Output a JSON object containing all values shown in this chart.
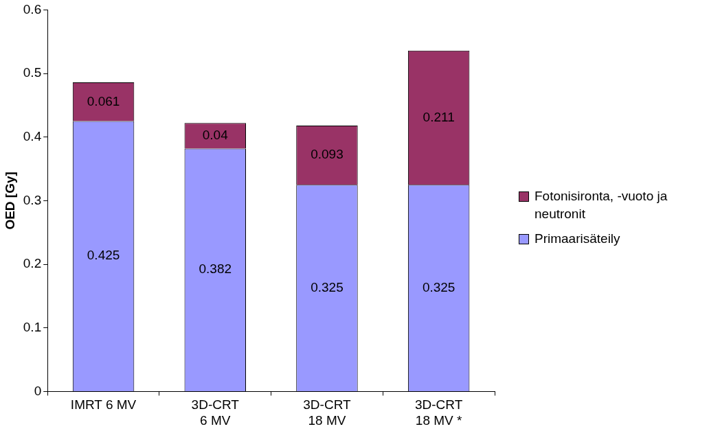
{
  "chart_data": {
    "type": "bar",
    "stacked": true,
    "ylabel": "OED [Gy]",
    "categories": [
      "IMRT 6 MV",
      "3D-CRT 6 MV",
      "3D-CRT 18 MV",
      "3D-CRT 18 MV *"
    ],
    "series": [
      {
        "name": "Primaarisäteily",
        "color": "#9999ff",
        "values": [
          0.425,
          0.382,
          0.325,
          0.325
        ]
      },
      {
        "name": "Fotonisironta, -vuoto ja neutronit",
        "color": "#993366",
        "values": [
          0.061,
          0.04,
          0.093,
          0.211
        ]
      }
    ],
    "ylim": [
      0,
      0.6
    ],
    "yticks": [
      0,
      0.1,
      0.2,
      0.3,
      0.4,
      0.5,
      0.6
    ],
    "grid": false,
    "legend": "right",
    "data_labels": true
  }
}
